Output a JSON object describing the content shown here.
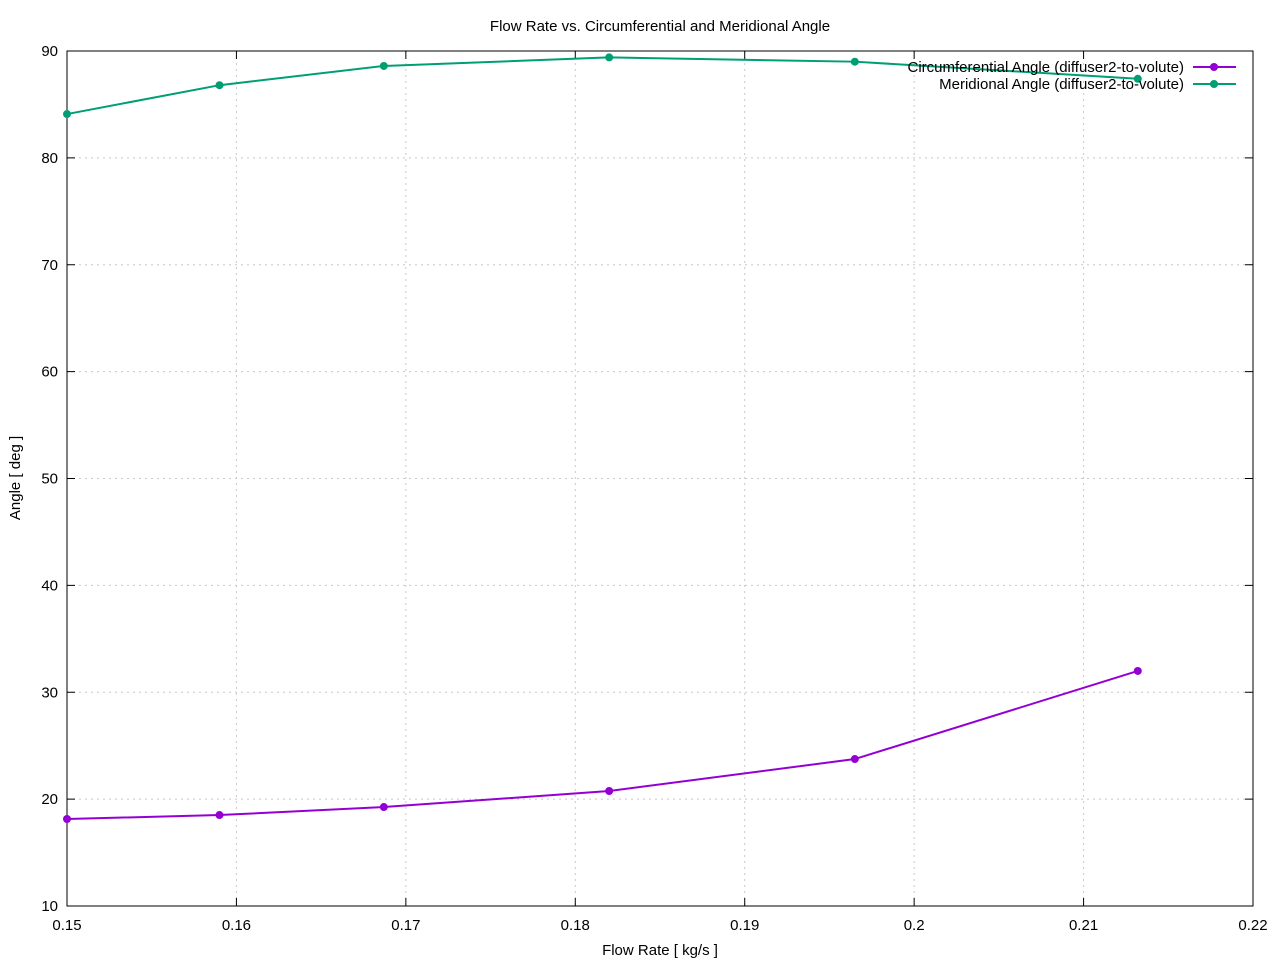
{
  "chart_data": {
    "type": "line",
    "title": "Flow Rate vs. Circumferential and Meridional Angle",
    "x_label": "Flow Rate [ kg/s ]",
    "y_label": "Angle [ deg ]",
    "x": [
      0.15,
      0.159,
      0.1687,
      0.182,
      0.1965,
      0.2132
    ],
    "series": [
      {
        "name": "Circumferential Angle (diffuser2-to-volute)",
        "color": "#9400d3",
        "values": [
          18.14,
          18.51,
          19.26,
          20.76,
          23.75,
          31.99
        ]
      },
      {
        "name": "Meridional Angle (diffuser2-to-volute)",
        "color": "#009e73",
        "values": [
          84.1,
          86.8,
          88.6,
          89.4,
          89.0,
          87.4
        ]
      }
    ],
    "xlim": [
      0.15,
      0.22
    ],
    "xticks": [
      0.15,
      0.16,
      0.17,
      0.18,
      0.19,
      0.2,
      0.21,
      0.22
    ],
    "ylim": [
      10,
      90
    ],
    "yticks": [
      10,
      20,
      30,
      40,
      50,
      60,
      70,
      80,
      90
    ],
    "grid": true,
    "legend_position": "top-right"
  }
}
